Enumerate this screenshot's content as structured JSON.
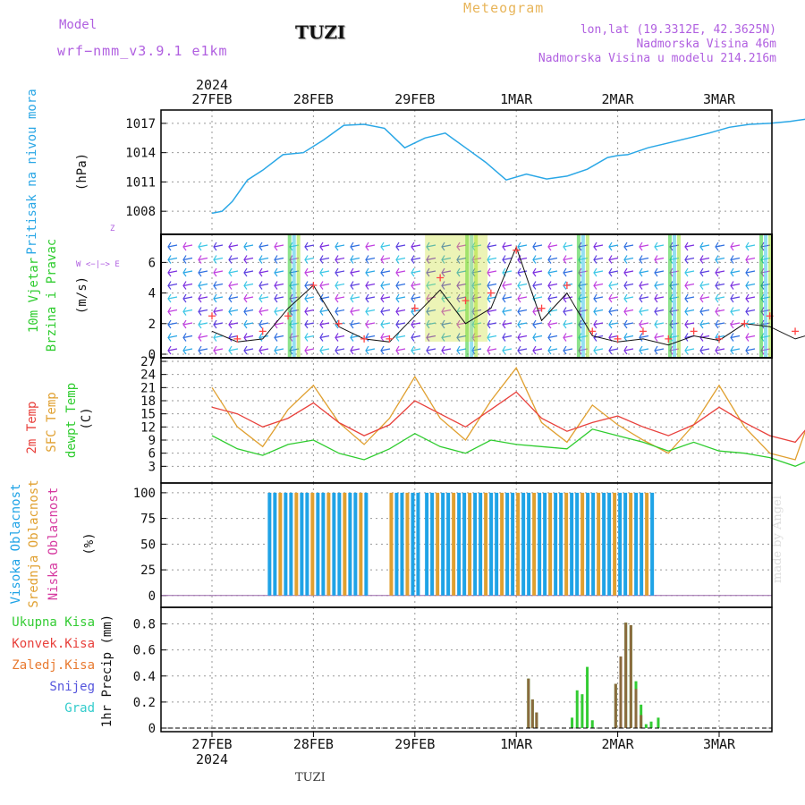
{
  "header": {
    "model_label": "Model",
    "model_version": "wrf−nmm_v3.9.1  e1km",
    "title": "TUZI",
    "meteogram": "Meteogram",
    "lonlat": "lon,lat (19.3312E, 42.3625N)",
    "altitude": "Nadmorska Visina 46m",
    "model_altitude": "Nadmorska Visina u modelu 214.216m"
  },
  "footer": {
    "station": "TUZI",
    "watermark": "made by Angel"
  },
  "colors": {
    "pressure": "#2aa7e6",
    "t2m": "#e8413c",
    "sfc": "#e0a030",
    "dewpt": "#2ecc2e",
    "high_cloud": "#1fa3e6",
    "mid_cloud": "#e0a030",
    "low_cloud": "#d63aa0",
    "total_precip": "#33cc33",
    "conv_precip": "#8b6a3e",
    "wind_speed": "#111111",
    "wind_gust": "#ff4444"
  },
  "axis": {
    "top_year": "2024",
    "bottom_year": "2024",
    "dates": [
      "27FEB",
      "28FEB",
      "29FEB",
      "1MAR",
      "2MAR",
      "3MAR"
    ]
  },
  "chart_data": [
    {
      "type": "line",
      "panel": "pressure",
      "ylabel_main": "Pritisak na nivou mora",
      "ylabel_unit": "(hPa)",
      "ylim": [
        1006,
        1018
      ],
      "yticks": [
        1008,
        1011,
        1014,
        1017
      ],
      "grid": true,
      "x_days": [
        0,
        0.1,
        0.2,
        0.35,
        0.5,
        0.7,
        0.9,
        1.1,
        1.3,
        1.5,
        1.7,
        1.9,
        2.1,
        2.3,
        2.5,
        2.7,
        2.9,
        3.1,
        3.3,
        3.5,
        3.7,
        3.9,
        4.0,
        4.1,
        4.3,
        4.5,
        4.7,
        4.9,
        5.1,
        5.3,
        5.5,
        5.7,
        5.9,
        6.0
      ],
      "series": [
        {
          "values": [
            1007.8,
            1008.0,
            1009.0,
            1011.2,
            1012.2,
            1013.8,
            1014.0,
            1015.3,
            1016.8,
            1016.9,
            1016.5,
            1014.5,
            1015.5,
            1016.0,
            1014.5,
            1013.0,
            1011.2,
            1011.8,
            1011.3,
            1011.6,
            1012.3,
            1013.5,
            1013.7,
            1013.8,
            1014.5,
            1015.0,
            1015.5,
            1016.0,
            1016.6,
            1016.9,
            1017.0,
            1017.2,
            1017.5,
            1016.5
          ]
        }
      ]
    },
    {
      "type": "line",
      "panel": "wind",
      "ylabel_main": "10m Vjetar",
      "ylabel_sub": "Brzina i Pravac",
      "ylabel_unit": "(m/s)",
      "compass": "Z",
      "compass_arrow": "W <−|−> E",
      "ylim": [
        0,
        7.6
      ],
      "yticks": [
        0,
        2,
        4,
        6
      ],
      "grid": true,
      "x_days": [
        0,
        0.25,
        0.5,
        0.75,
        1.0,
        1.25,
        1.5,
        1.75,
        2.0,
        2.25,
        2.5,
        2.75,
        3.0,
        3.25,
        3.5,
        3.75,
        4.0,
        4.25,
        4.5,
        4.75,
        5.0,
        5.25,
        5.5,
        5.75,
        6.0
      ],
      "series": [
        {
          "name": "speed",
          "values": [
            1.5,
            0.8,
            1.0,
            3.0,
            4.5,
            1.8,
            1.0,
            0.8,
            2.5,
            4.2,
            2.0,
            3.0,
            7.0,
            2.2,
            4.0,
            1.2,
            0.8,
            1.0,
            0.6,
            1.2,
            0.9,
            2.0,
            1.8,
            1.0,
            1.5
          ]
        },
        {
          "name": "gust",
          "values": [
            2.5,
            1.0,
            1.5,
            2.5,
            4.5,
            2.0,
            1.0,
            1.0,
            3.0,
            5.0,
            3.5,
            4.0,
            6.8,
            3.0,
            4.5,
            1.5,
            1.0,
            1.5,
            1.0,
            1.5,
            1.0,
            2.0,
            2.5,
            1.5,
            2.0
          ]
        }
      ]
    },
    {
      "type": "line",
      "panel": "temperature",
      "ylabel_t2m": "2m Temp",
      "ylabel_sfc": "SFC Temp",
      "ylabel_dew": "dewpt Temp",
      "ylabel_unit": "(C)",
      "ylim": [
        0,
        27
      ],
      "yticks": [
        3,
        6,
        9,
        12,
        15,
        18,
        21,
        24,
        27
      ],
      "grid": true,
      "x_days": [
        0,
        0.25,
        0.5,
        0.75,
        1.0,
        1.25,
        1.5,
        1.75,
        2.0,
        2.25,
        2.5,
        2.75,
        3.0,
        3.25,
        3.5,
        3.75,
        4.0,
        4.25,
        4.5,
        4.75,
        5.0,
        5.25,
        5.5,
        5.75,
        6.0
      ],
      "series": [
        {
          "name": "2m Temp",
          "values": [
            16.5,
            15.0,
            12.0,
            14.0,
            17.5,
            13.0,
            10.0,
            12.5,
            18.0,
            15.0,
            12.0,
            16.0,
            20.0,
            14.0,
            11.0,
            13.0,
            14.5,
            12.0,
            10.0,
            12.5,
            16.5,
            13.0,
            10.0,
            8.5,
            15.5
          ]
        },
        {
          "name": "SFC Temp",
          "values": [
            21.0,
            12.0,
            7.5,
            16.0,
            21.5,
            13.0,
            8.0,
            14.0,
            23.5,
            14.0,
            9.0,
            18.0,
            25.5,
            13.0,
            8.5,
            17.0,
            12.5,
            9.0,
            6.0,
            12.5,
            21.5,
            12.0,
            6.0,
            4.5,
            21.0
          ]
        },
        {
          "name": "dewpt Temp",
          "values": [
            10.0,
            7.0,
            5.5,
            8.0,
            9.0,
            6.0,
            4.5,
            7.0,
            10.5,
            7.5,
            6.0,
            9.0,
            8.0,
            7.5,
            7.0,
            11.5,
            10.0,
            8.5,
            6.5,
            8.5,
            6.5,
            6.0,
            5.0,
            3.0,
            5.5
          ]
        }
      ]
    },
    {
      "type": "bar",
      "panel": "clouds",
      "ylabel_high": "Visoka Oblacnost",
      "ylabel_mid": "Srednja Oblacnost",
      "ylabel_low": "Niska Oblacnost",
      "ylabel_unit": "(%)",
      "ylim": [
        -8,
        106
      ],
      "yticks": [
        0,
        25,
        50,
        75,
        100
      ],
      "grid": true,
      "segments": [
        {
          "start_day": 0.55,
          "end_day": 1.55,
          "value": 100
        },
        {
          "start_day": 1.75,
          "end_day": 2.05,
          "value": 100
        },
        {
          "start_day": 2.1,
          "end_day": 4.35,
          "value": 100
        }
      ]
    },
    {
      "type": "bar",
      "panel": "precipitation",
      "legend": [
        "Ukupna  Kisa",
        "Konvek.Kisa",
        "Zaledj.Kisa",
        "Snijeg",
        "Grad"
      ],
      "ylabel_unit": "1hr Precip (mm)",
      "ylim": [
        0,
        0.9
      ],
      "yticks": [
        0,
        0.2,
        0.4,
        0.6,
        0.8
      ],
      "grid": true,
      "bars": [
        {
          "x_day": 3.12,
          "total": 0.38,
          "conv": 0.38
        },
        {
          "x_day": 3.16,
          "total": 0.22,
          "conv": 0.22
        },
        {
          "x_day": 3.2,
          "total": 0.12,
          "conv": 0.12
        },
        {
          "x_day": 3.55,
          "total": 0.08,
          "conv": 0
        },
        {
          "x_day": 3.6,
          "total": 0.29,
          "conv": 0
        },
        {
          "x_day": 3.65,
          "total": 0.26,
          "conv": 0
        },
        {
          "x_day": 3.7,
          "total": 0.47,
          "conv": 0
        },
        {
          "x_day": 3.75,
          "total": 0.06,
          "conv": 0
        },
        {
          "x_day": 3.98,
          "total": 0.34,
          "conv": 0.34
        },
        {
          "x_day": 4.03,
          "total": 0.55,
          "conv": 0.55
        },
        {
          "x_day": 4.08,
          "total": 0.81,
          "conv": 0.81
        },
        {
          "x_day": 4.13,
          "total": 0.79,
          "conv": 0.79
        },
        {
          "x_day": 4.18,
          "total": 0.36,
          "conv": 0.3
        },
        {
          "x_day": 4.23,
          "total": 0.18,
          "conv": 0.1
        },
        {
          "x_day": 4.28,
          "total": 0.03,
          "conv": 0
        },
        {
          "x_day": 4.33,
          "total": 0.05,
          "conv": 0
        },
        {
          "x_day": 4.4,
          "total": 0.08,
          "conv": 0
        }
      ]
    }
  ]
}
